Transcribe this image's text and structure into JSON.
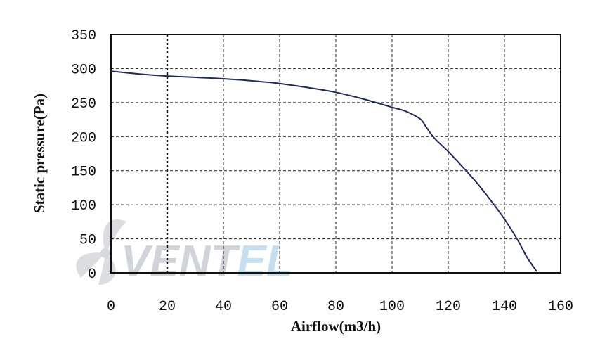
{
  "chart_data": {
    "type": "line",
    "title": "",
    "xlabel": "Airflow(m3/h)",
    "ylabel": "Static pressure(Pa)",
    "xlim": [
      0,
      160
    ],
    "ylim": [
      0,
      350
    ],
    "x_ticks": [
      "0",
      "20",
      "40",
      "60",
      "80",
      "100",
      "120",
      "140",
      "160"
    ],
    "y_ticks": [
      "0",
      "50",
      "100",
      "150",
      "200",
      "250",
      "300",
      "350"
    ],
    "grid": true,
    "legend": "none",
    "series": [
      {
        "color": "#1f2a5c",
        "x": [
          0,
          10,
          20,
          30,
          40,
          50,
          60,
          70,
          80,
          90,
          100,
          105,
          110,
          112,
          115,
          120,
          125,
          130,
          135,
          140,
          145,
          148,
          151.5
        ],
        "y": [
          296,
          292,
          289,
          287,
          285,
          282,
          278,
          272,
          265,
          255,
          243,
          237,
          226,
          215,
          198,
          178,
          156,
          133,
          107,
          79,
          46,
          23,
          2
        ]
      }
    ]
  },
  "watermark": {
    "text": "VENTEL",
    "part1": "VENT",
    "part2": "EL",
    "colors": {
      "part1": "#c8ccd1",
      "part2": "#bcd9ee"
    },
    "icon": "fan-blade-icon"
  }
}
